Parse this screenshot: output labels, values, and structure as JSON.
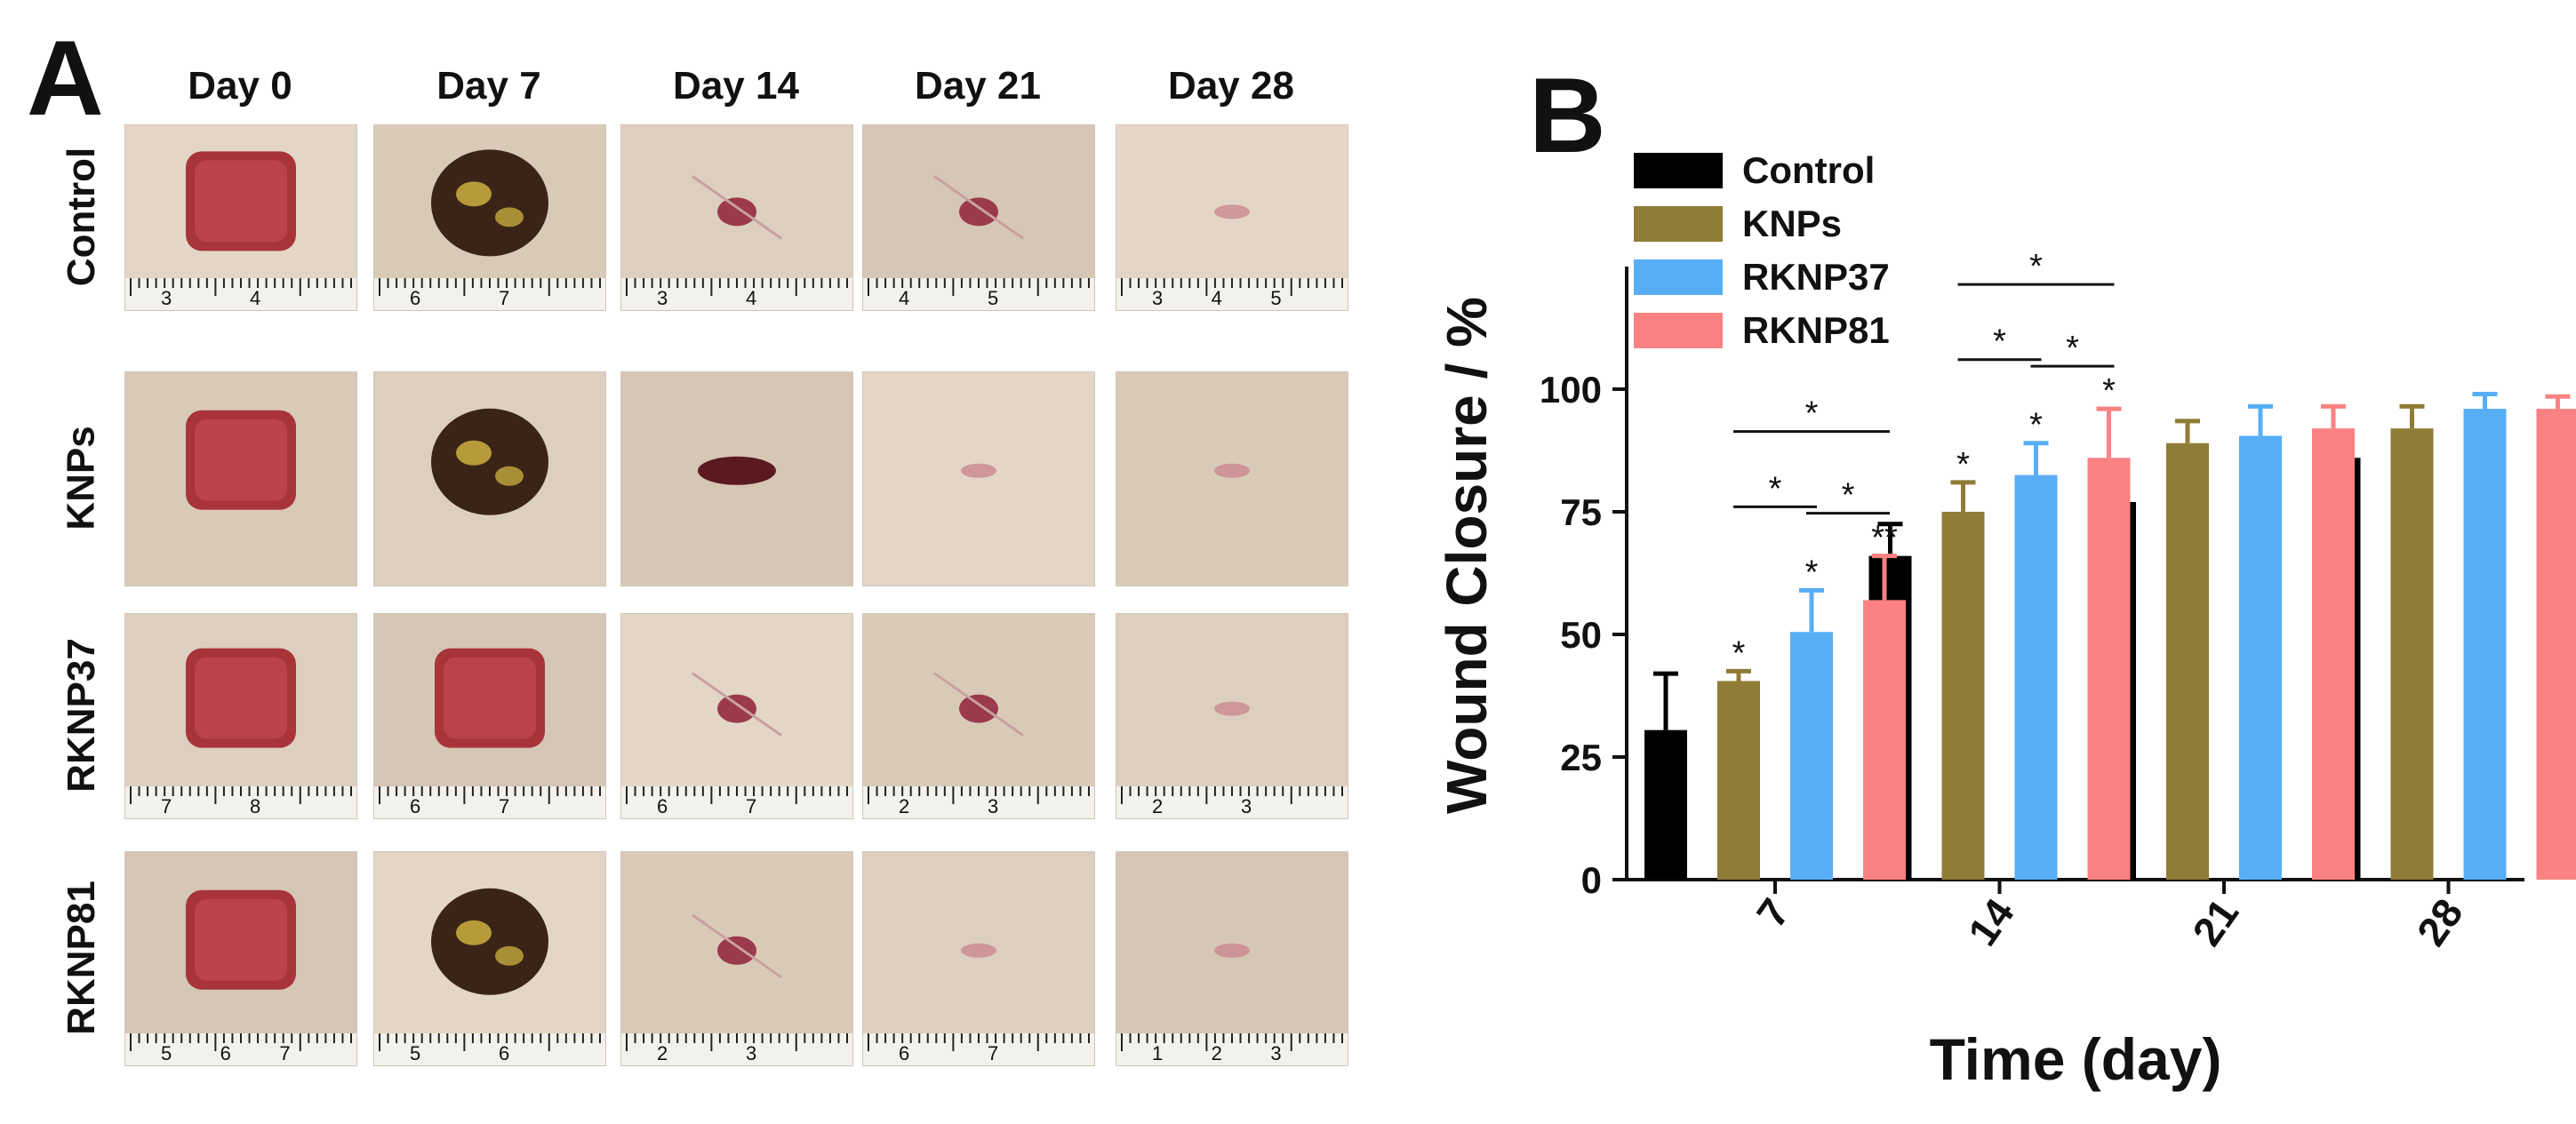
{
  "panel_a": {
    "letter": "A",
    "columns": [
      "Day 0",
      "Day 7",
      "Day 14",
      "Day 21",
      "Day 28"
    ],
    "rows": [
      "Control",
      "KNPs",
      "RKNP37",
      "RKNP81"
    ],
    "ruler_labels": [
      [
        [
          "3",
          "4"
        ],
        [
          "6",
          "7"
        ],
        [
          "3",
          "4"
        ],
        [
          "4",
          "5"
        ],
        [
          "3",
          "4",
          "5"
        ]
      ],
      [
        [],
        [],
        [],
        [],
        []
      ],
      [
        [
          "7",
          "8"
        ],
        [
          "6",
          "7"
        ],
        [
          "6",
          "7"
        ],
        [
          "2",
          "3"
        ],
        [
          "2",
          "3"
        ]
      ],
      [
        [
          "5",
          "6",
          "7"
        ],
        [
          "5",
          "6"
        ],
        [
          "2",
          "3"
        ],
        [
          "6",
          "7"
        ],
        [
          "1",
          "2",
          "3"
        ]
      ]
    ],
    "wound_description": [
      [
        "open",
        "scab",
        "small",
        "small",
        "faint"
      ],
      [
        "open",
        "scab",
        "medium",
        "faint",
        "faint"
      ],
      [
        "open",
        "open",
        "small",
        "small",
        "faint"
      ],
      [
        "open",
        "scab",
        "small",
        "faint",
        "faint"
      ]
    ]
  },
  "panel_b": {
    "letter": "B"
  },
  "chart_data": {
    "type": "bar",
    "title": "",
    "xlabel": "Time (day)",
    "ylabel": "Wound Closure / %",
    "ylim": [
      0,
      125
    ],
    "yticks": [
      0,
      25,
      50,
      75,
      100
    ],
    "categories": [
      "7",
      "14",
      "21",
      "28"
    ],
    "legend_position": "top-left",
    "grid": false,
    "series": [
      {
        "name": "Control",
        "color": "#000000",
        "values": [
          30.5,
          66,
          77,
          86
        ],
        "errors": [
          11.5,
          6.5,
          5,
          3.5
        ]
      },
      {
        "name": "KNPs",
        "color": "#8f7c36",
        "values": [
          40.5,
          75,
          89,
          92
        ],
        "errors": [
          2,
          6,
          4.5,
          4.5
        ]
      },
      {
        "name": "RKNP37",
        "color": "#58aef5",
        "values": [
          50.5,
          82.5,
          90.5,
          96
        ],
        "errors": [
          8.5,
          6.5,
          6,
          3
        ]
      },
      {
        "name": "RKNP81",
        "color": "#fa8282",
        "values": [
          57,
          86,
          92,
          96
        ],
        "errors": [
          9,
          10,
          4.5,
          2.5
        ]
      }
    ],
    "point_marks": [
      {
        "category": 0,
        "series": 1,
        "text": "*"
      },
      {
        "category": 0,
        "series": 2,
        "text": "*"
      },
      {
        "category": 0,
        "series": 3,
        "text": "**"
      },
      {
        "category": 1,
        "series": 1,
        "text": "*"
      },
      {
        "category": 1,
        "series": 2,
        "text": "*"
      },
      {
        "category": 1,
        "series": 3,
        "text": "*"
      }
    ],
    "comparisons": [
      {
        "category": 0,
        "from": 2,
        "to": 3,
        "text": "*",
        "level": 0
      },
      {
        "category": 0,
        "from": 1,
        "to": 2,
        "text": "*",
        "level": 1
      },
      {
        "category": 0,
        "from": 1,
        "to": 3,
        "text": "*",
        "level": 2
      },
      {
        "category": 1,
        "from": 2,
        "to": 3,
        "text": "*",
        "level": 0
      },
      {
        "category": 1,
        "from": 1,
        "to": 2,
        "text": "*",
        "level": 1
      },
      {
        "category": 1,
        "from": 1,
        "to": 3,
        "text": "*",
        "level": 2
      }
    ]
  }
}
